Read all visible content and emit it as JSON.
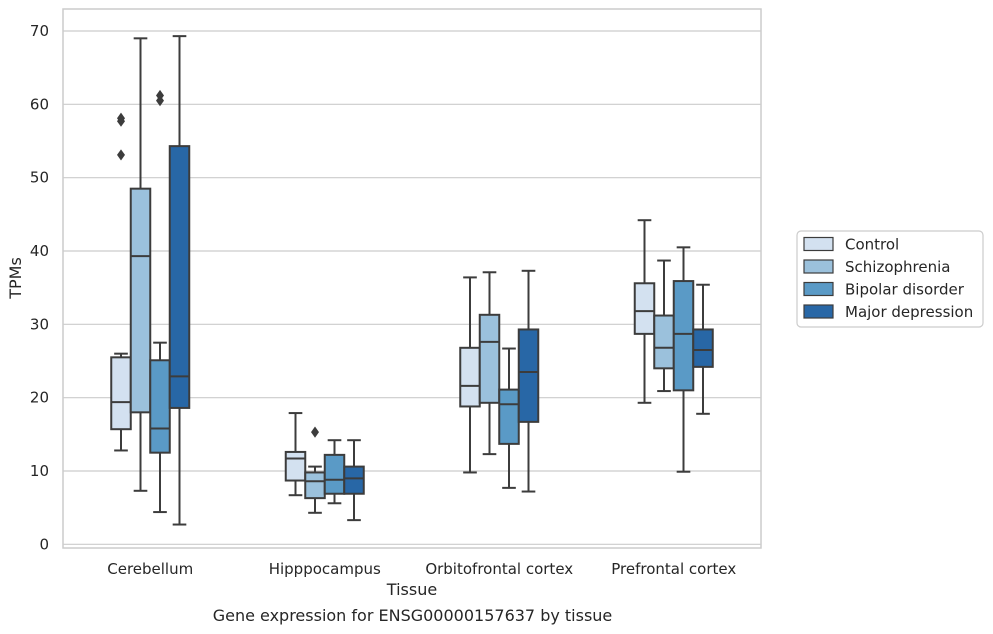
{
  "chart_data": {
    "type": "box",
    "caption": "Gene expression for ENSG00000157637 by tissue",
    "xlabel": "Tissue",
    "ylabel": "TPMs",
    "ylim": [
      -0.5,
      73
    ],
    "yticks": [
      0,
      10,
      20,
      30,
      40,
      50,
      60,
      70
    ],
    "categories": [
      "Cerebellum",
      "Hipppocampus",
      "Orbitofrontal cortex",
      "Prefrontal cortex"
    ],
    "grid": true,
    "legend_placement": "right",
    "series": [
      {
        "name": "Control",
        "color": "#d3e1f0",
        "boxes": [
          {
            "whislo": 12.8,
            "q1": 15.7,
            "med": 19.4,
            "q3": 25.5,
            "whishi": 26.0,
            "fliers": []
          },
          {
            "whislo": 6.7,
            "q1": 8.7,
            "med": 11.7,
            "q3": 12.6,
            "whishi": 17.9,
            "fliers": []
          },
          {
            "whislo": 9.8,
            "q1": 18.8,
            "med": 21.6,
            "q3": 26.8,
            "whishi": 36.4,
            "fliers": []
          },
          {
            "whislo": 19.3,
            "q1": 28.7,
            "med": 31.8,
            "q3": 35.6,
            "whishi": 44.2,
            "fliers": []
          }
        ]
      },
      {
        "name": "Schizophrenia",
        "color": "#9bc1dc",
        "boxes": [
          {
            "whislo": 7.3,
            "q1": 18.0,
            "med": 39.3,
            "q3": 48.5,
            "whishi": 69.0,
            "fliers": []
          },
          {
            "whislo": 4.3,
            "q1": 6.3,
            "med": 8.6,
            "q3": 9.8,
            "whishi": 10.6,
            "fliers": [
              15.3
            ]
          },
          {
            "whislo": 12.3,
            "q1": 19.3,
            "med": 27.6,
            "q3": 31.3,
            "whishi": 37.1,
            "fliers": []
          },
          {
            "whislo": 20.9,
            "q1": 24.0,
            "med": 26.8,
            "q3": 31.2,
            "whishi": 38.7,
            "fliers": []
          }
        ]
      },
      {
        "name": "Bipolar disorder",
        "color": "#5a9ac6",
        "boxes": [
          {
            "whislo": 4.4,
            "q1": 12.5,
            "med": 15.8,
            "q3": 25.1,
            "whishi": 27.5,
            "fliers": [
              60.5,
              61.2
            ]
          },
          {
            "whislo": 5.6,
            "q1": 6.9,
            "med": 8.8,
            "q3": 12.2,
            "whishi": 14.2,
            "fliers": []
          },
          {
            "whislo": 7.7,
            "q1": 13.7,
            "med": 19.1,
            "q3": 21.1,
            "whishi": 26.7,
            "fliers": []
          },
          {
            "whislo": 9.9,
            "q1": 21.0,
            "med": 28.7,
            "q3": 35.9,
            "whishi": 40.5,
            "fliers": []
          }
        ]
      },
      {
        "name": "Major depression",
        "color": "#2867a6",
        "boxes": [
          {
            "whislo": 2.7,
            "q1": 18.6,
            "med": 22.9,
            "q3": 54.3,
            "whishi": 69.3,
            "fliers": []
          },
          {
            "whislo": 3.3,
            "q1": 6.9,
            "med": 9.0,
            "q3": 10.6,
            "whishi": 14.2,
            "fliers": []
          },
          {
            "whislo": 7.2,
            "q1": 16.7,
            "med": 23.5,
            "q3": 29.3,
            "whishi": 37.3,
            "fliers": []
          },
          {
            "whislo": 17.8,
            "q1": 24.2,
            "med": 26.5,
            "q3": 29.3,
            "whishi": 35.4,
            "fliers": []
          }
        ]
      }
    ],
    "extra_fliers": [
      {
        "series": 0,
        "category": 0,
        "values": [
          53.1,
          57.7,
          58.1
        ]
      }
    ]
  }
}
